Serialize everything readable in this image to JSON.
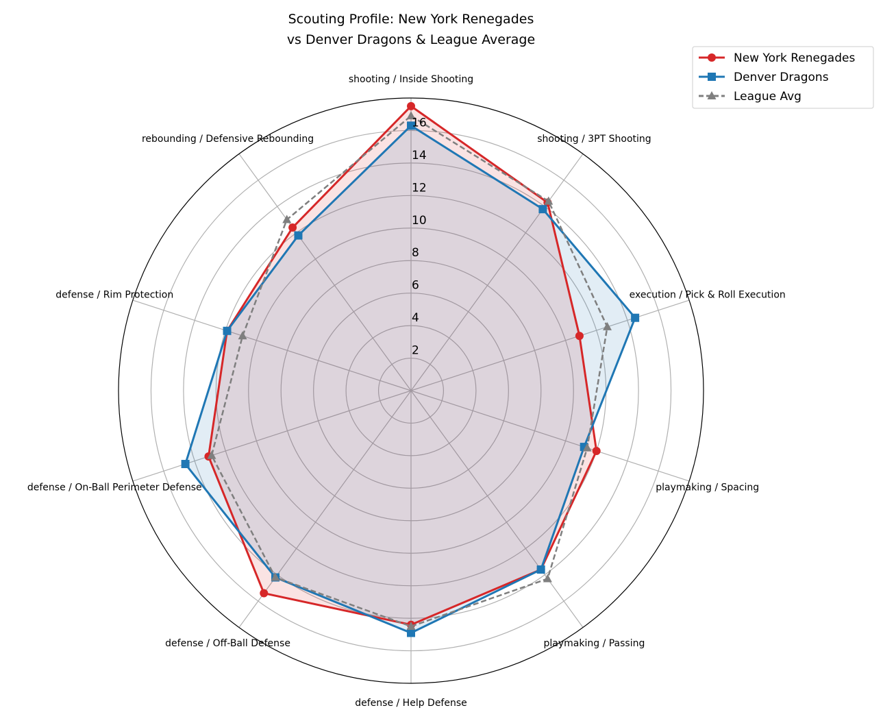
{
  "chart_data": {
    "type": "radar",
    "title": "Scouting Profile: New York Renegades\nvs Denver Dragons & League Average",
    "title_lines": [
      "Scouting Profile: New York Renegades",
      "vs Denver Dragons & League Average"
    ],
    "categories": [
      "shooting / Inside Shooting",
      "shooting / 3PT Shooting",
      "execution / Pick & Roll Execution",
      "playmaking / Spacing",
      "playmaking / Passing",
      "defense / Help Defense",
      "defense / Off-Ball Defense",
      "defense / On-Ball Perimeter Defense",
      "defense / Rim Protection",
      "rebounding / Defensive Rebounding"
    ],
    "radial_ticks": [
      "2",
      "4",
      "6",
      "8",
      "10",
      "12",
      "14",
      "16"
    ],
    "rlim": [
      0,
      18
    ],
    "grid": true,
    "legend_position": "top-right",
    "series": [
      {
        "name": "New York Renegades",
        "color": "#d62728",
        "marker": "circle",
        "style": "solid",
        "fill": true,
        "values": [
          17.5,
          14.3,
          10.9,
          12.0,
          13.6,
          14.4,
          15.4,
          13.1,
          11.9,
          12.4
        ]
      },
      {
        "name": "Denver Dragons",
        "color": "#1f77b4",
        "marker": "square",
        "style": "solid",
        "fill": true,
        "values": [
          16.3,
          13.8,
          14.5,
          11.2,
          13.6,
          14.9,
          14.2,
          14.6,
          11.9,
          11.8
        ]
      },
      {
        "name": "League Avg",
        "color": "#7f7f7f",
        "marker": "triangle",
        "style": "dashed",
        "fill": false,
        "values": [
          16.9,
          14.4,
          12.7,
          11.4,
          14.3,
          14.5,
          14.2,
          12.9,
          10.9,
          13.0
        ]
      }
    ]
  }
}
